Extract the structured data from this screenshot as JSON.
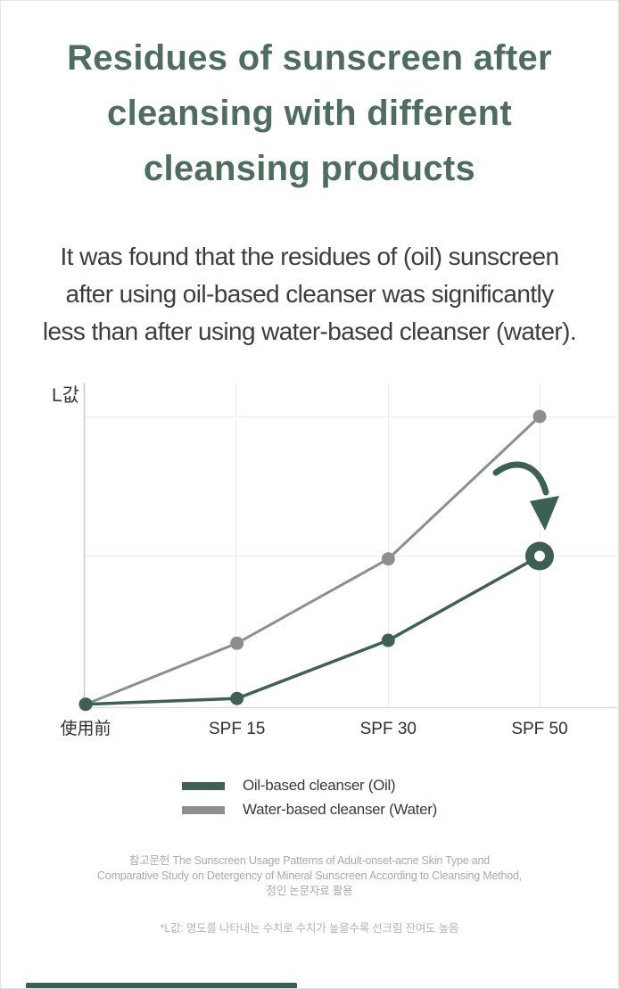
{
  "header": {
    "title_lines": [
      "Residues of sunscreen after",
      "cleansing with different",
      "cleansing products"
    ],
    "title_color": "#4f6d5e"
  },
  "intro": {
    "lines": [
      "It was found that the residues of (oil) sunscreen",
      "after using oil-based cleanser was significantly",
      "less than after using water-based cleanser (water)."
    ]
  },
  "chart_data": {
    "type": "line",
    "title": "",
    "xlabel": "",
    "ylabel": "L값",
    "categories": [
      "使用前",
      "SPF 15",
      "SPF 30",
      "SPF 50"
    ],
    "series": [
      {
        "name": "Water-based cleanser (Water)",
        "color": "#8b908c",
        "values": [
          1,
          22,
          51,
          100
        ],
        "marker": "dot"
      },
      {
        "name": "Oil-based cleanser (Oil)",
        "color": "#406056",
        "values": [
          1,
          3,
          23,
          52
        ],
        "marker": "dot",
        "end_marker": "donut-ring",
        "end_marker_color": "#3d5f54"
      }
    ],
    "value_scale": "relative L-value (no numeric ticks shown; 100 = top gridline)",
    "ylim": [
      0,
      112
    ],
    "grid": true,
    "legend_position": "bottom",
    "annotations": [
      {
        "type": "curved-arrow",
        "at_category": "SPF 50",
        "from_series": "Water-based cleanser (Water)",
        "to_series": "Oil-based cleanser (Oil)",
        "color": "#3d5f54"
      }
    ]
  },
  "reference": {
    "lines": [
      "참고문헌 The Sunscreen Usage Patterns of Adult-onset-acne Skin Type and",
      "Comparative Study on Detergency of Mineral Sunscreen According to Cleansing Method,",
      "정인 논문자료 활용"
    ]
  },
  "note": {
    "text": "*L값: 명도를 나타내는 수치로 수치가 높을수록 선크림 잔여도 높음"
  },
  "accent": {
    "color": "#3a5e52"
  }
}
